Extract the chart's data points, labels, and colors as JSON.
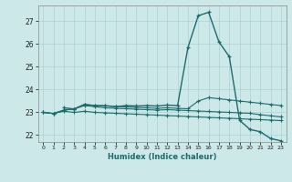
{
  "xlabel": "Humidex (Indice chaleur)",
  "bg_color": "#cce8e8",
  "line_color": "#1e6b6b",
  "xlim": [
    -0.5,
    23.5
  ],
  "ylim": [
    21.7,
    27.7
  ],
  "xticks": [
    0,
    1,
    2,
    3,
    4,
    5,
    6,
    7,
    8,
    9,
    10,
    11,
    12,
    13,
    14,
    15,
    16,
    17,
    18,
    19,
    20,
    21,
    22,
    23
  ],
  "yticks": [
    22,
    23,
    24,
    25,
    26,
    27
  ],
  "line_flat1_x": [
    0,
    1,
    2,
    3,
    4,
    5,
    6,
    7,
    8,
    9,
    10,
    11,
    12,
    13,
    14,
    15,
    16,
    17,
    18,
    19,
    20,
    21,
    22,
    23
  ],
  "line_flat1_y": [
    23.0,
    22.95,
    23.05,
    23.0,
    23.05,
    23.0,
    22.98,
    22.96,
    22.94,
    22.92,
    22.9,
    22.88,
    22.86,
    22.84,
    22.82,
    22.8,
    22.78,
    22.76,
    22.74,
    22.72,
    22.7,
    22.68,
    22.66,
    22.64
  ],
  "line_flat2_x": [
    0,
    1,
    2,
    3,
    4,
    5,
    6,
    7,
    8,
    9,
    10,
    11,
    12,
    13,
    14,
    15,
    16,
    17,
    18,
    19,
    20,
    21,
    22,
    23
  ],
  "line_flat2_y": [
    23.0,
    22.95,
    23.1,
    23.15,
    23.3,
    23.25,
    23.2,
    23.18,
    23.16,
    23.14,
    23.12,
    23.1,
    23.12,
    23.1,
    23.08,
    23.06,
    23.04,
    23.02,
    23.0,
    22.98,
    22.96,
    22.9,
    22.85,
    22.8
  ],
  "line_mid_x": [
    0,
    1,
    2,
    3,
    4,
    5,
    6,
    7,
    8,
    9,
    10,
    11,
    12,
    13,
    14,
    15,
    16,
    17,
    18,
    19,
    20,
    21,
    22,
    23
  ],
  "line_mid_y": [
    23.0,
    22.95,
    23.1,
    23.15,
    23.35,
    23.3,
    23.28,
    23.26,
    23.24,
    23.22,
    23.2,
    23.18,
    23.2,
    23.18,
    23.16,
    23.5,
    23.65,
    23.6,
    23.55,
    23.5,
    23.45,
    23.4,
    23.35,
    23.3
  ],
  "line_peak_x": [
    2,
    3,
    4,
    5,
    6,
    7,
    8,
    9,
    10,
    11,
    12,
    13,
    14,
    15,
    16,
    17,
    18,
    19,
    20,
    21,
    22,
    23
  ],
  "line_peak_y": [
    23.2,
    23.15,
    23.35,
    23.3,
    23.3,
    23.25,
    23.3,
    23.28,
    23.3,
    23.28,
    23.32,
    23.3,
    25.85,
    27.25,
    27.4,
    26.1,
    25.45,
    22.65,
    22.25,
    22.15,
    21.85,
    21.75
  ]
}
